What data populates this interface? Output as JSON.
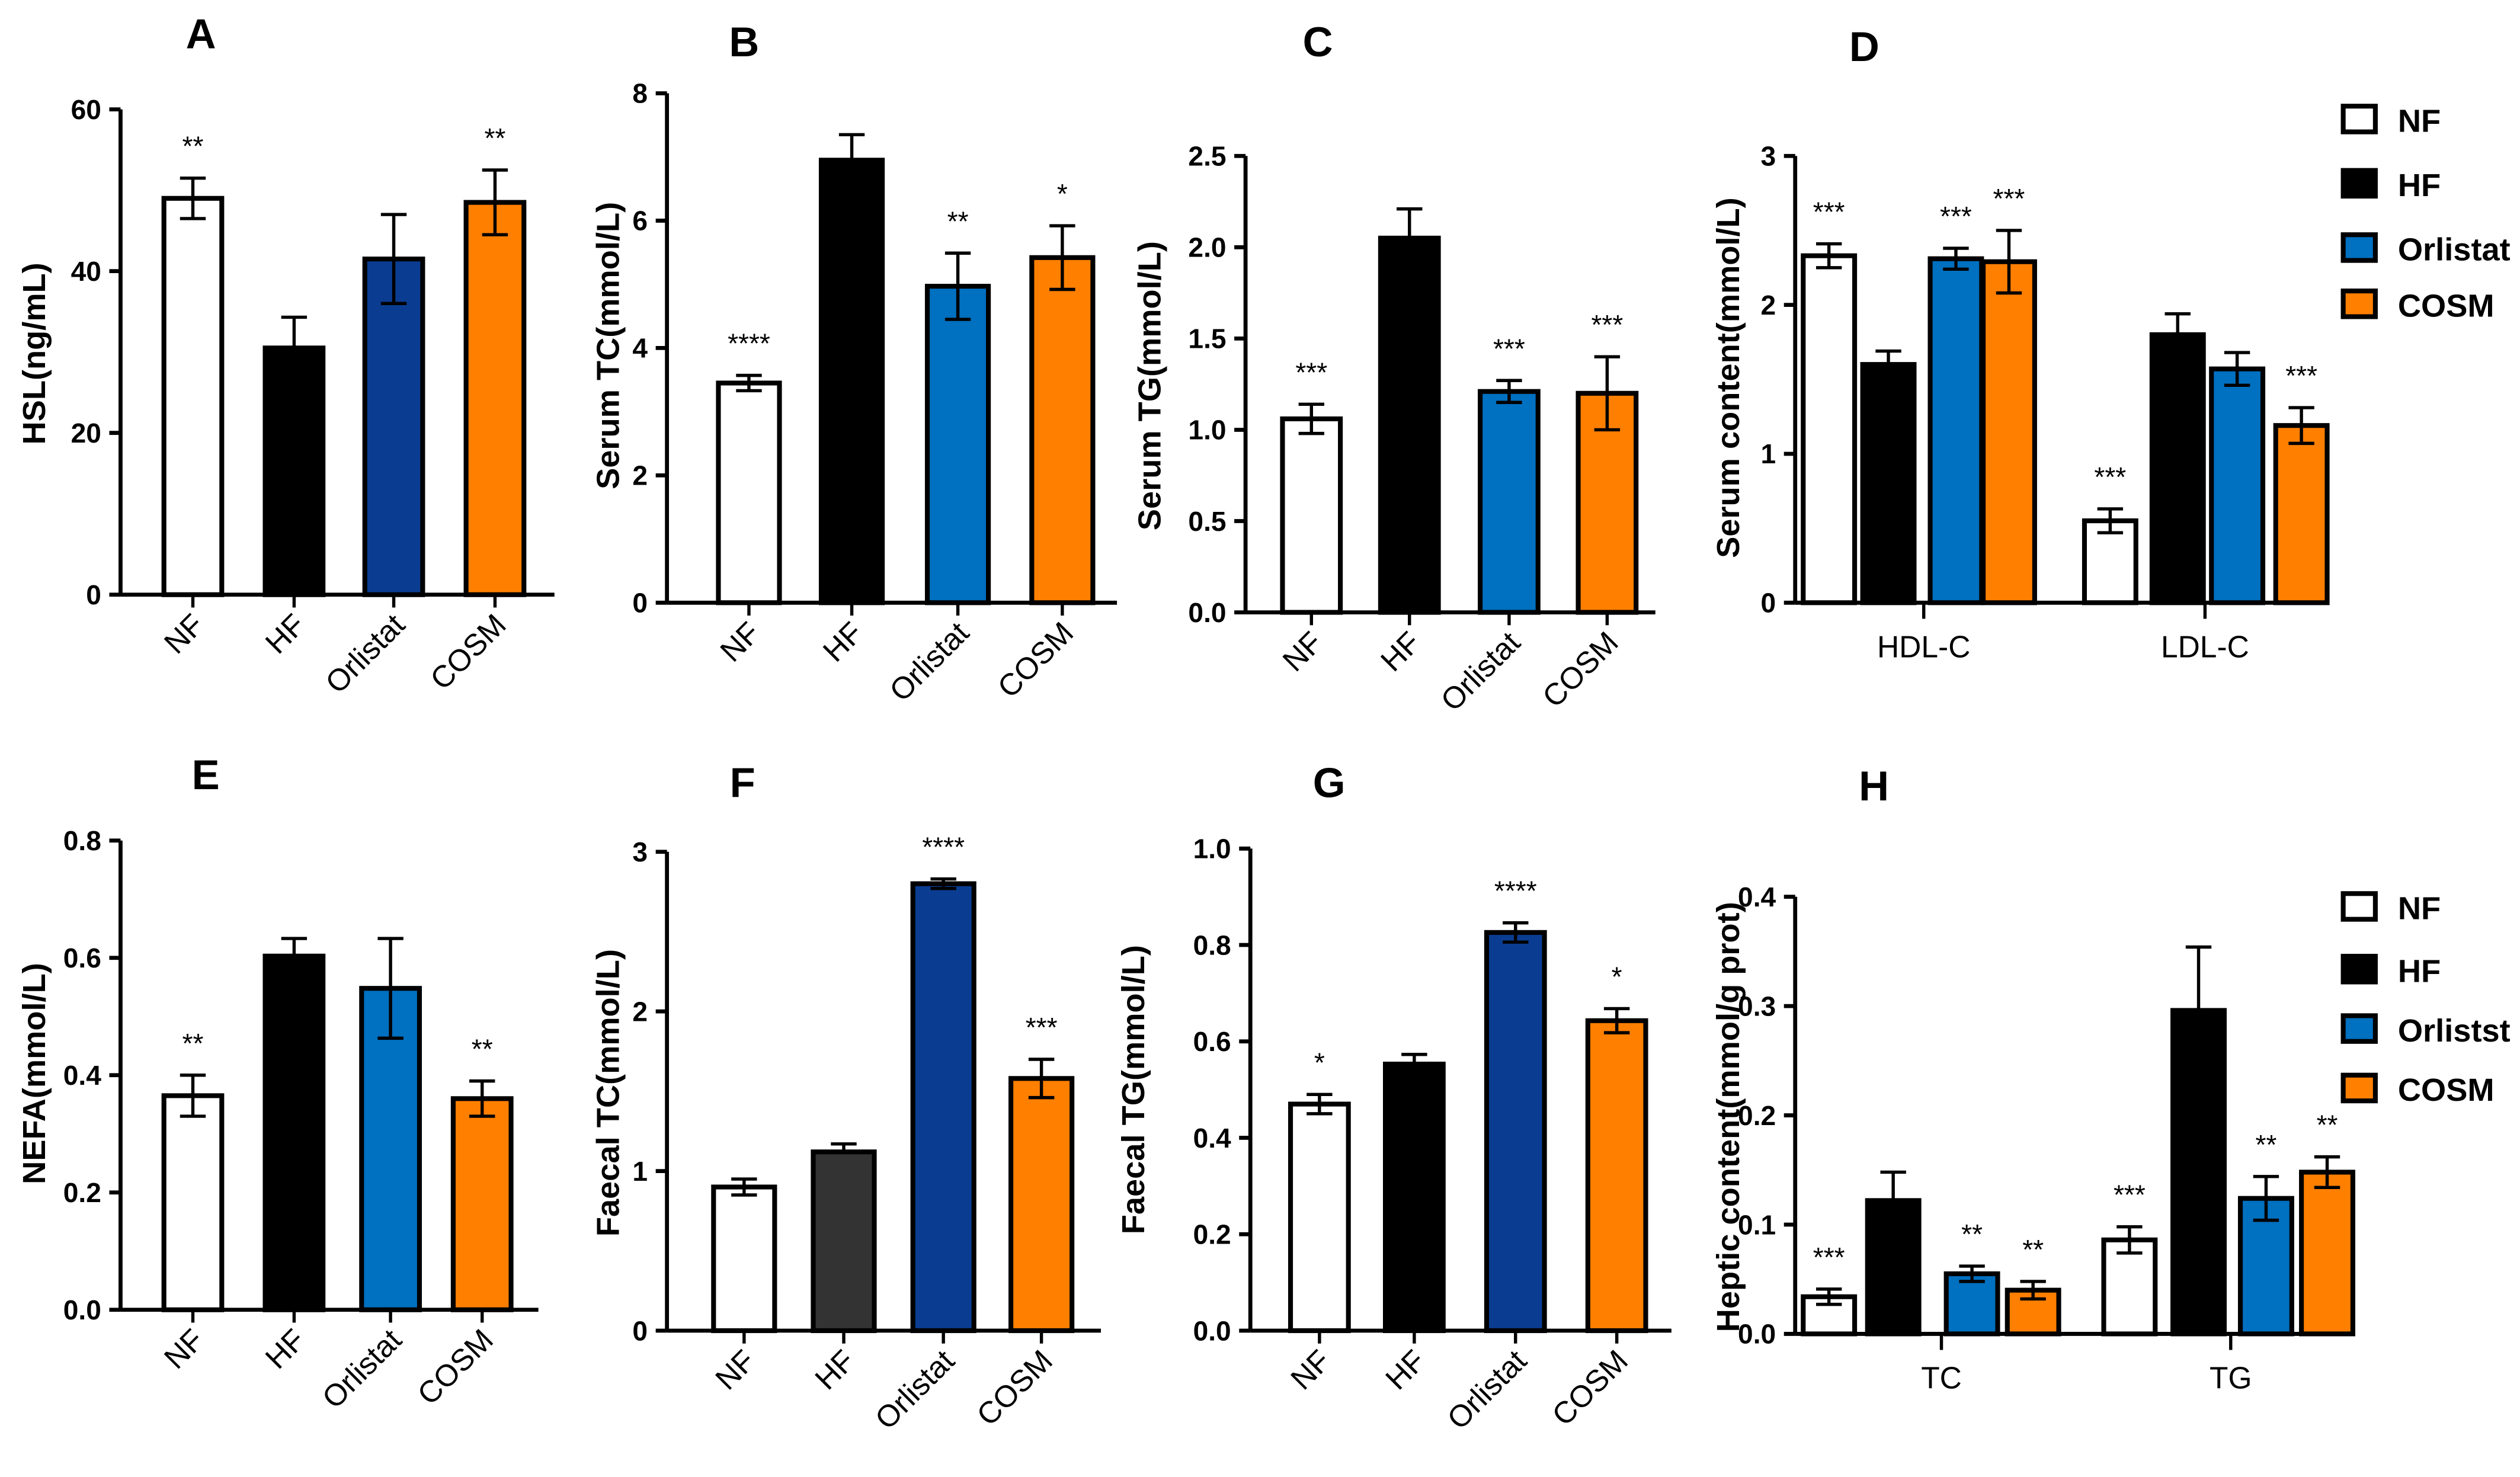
{
  "colors": {
    "NF": "#ffffff",
    "HF": "#000000",
    "HF_dark_gray": "#333333",
    "Orlistat_dark": "#0a3d91",
    "Orlistat": "#0070c0",
    "COSM": "#ff7f00"
  },
  "legend_top": [
    "NF",
    "HF",
    "Orlistat",
    "COSM"
  ],
  "legend_bottom": [
    "NF",
    "HF",
    "Orlistst",
    "COSM"
  ],
  "chart_data": [
    {
      "type": "bar",
      "title": "A",
      "ylabel": "HSL(ng/mL)",
      "ylim": [
        0,
        60
      ],
      "yticks": [
        "0",
        "20",
        "40",
        "60"
      ],
      "categories": [
        "NF",
        "HF",
        "Orlistat",
        "COSM"
      ],
      "values": [
        49,
        30.5,
        41.5,
        48.5
      ],
      "errors": [
        2.5,
        3.8,
        5.5,
        4
      ],
      "stars": [
        "**",
        "",
        "",
        "**"
      ],
      "colors": [
        "#ffffff",
        "#000000",
        "#0a3d91",
        "#ff7f00"
      ]
    },
    {
      "type": "bar",
      "title": "B",
      "ylabel": "Serum TC(mmol/L)",
      "ylim": [
        0,
        8
      ],
      "yticks": [
        "0",
        "2",
        "4",
        "6",
        "8"
      ],
      "categories": [
        "NF",
        "HF",
        "Orlistat",
        "COSM"
      ],
      "values": [
        3.45,
        6.95,
        4.97,
        5.42
      ],
      "errors": [
        0.12,
        0.4,
        0.52,
        0.5
      ],
      "stars": [
        "****",
        "",
        "**",
        "*"
      ],
      "colors": [
        "#ffffff",
        "#000000",
        "#0070c0",
        "#ff7f00"
      ]
    },
    {
      "type": "bar",
      "title": "C",
      "ylabel": "Serum TG(mmol/L)",
      "ylim": [
        0,
        2.5
      ],
      "yticks": [
        "0.0",
        "0.5",
        "1.0",
        "1.5",
        "2.0",
        "2.5"
      ],
      "categories": [
        "NF",
        "HF",
        "Orlistat",
        "COSM"
      ],
      "values": [
        1.06,
        2.05,
        1.21,
        1.2
      ],
      "errors": [
        0.08,
        0.16,
        0.06,
        0.2
      ],
      "stars": [
        "***",
        "",
        "***",
        "***"
      ],
      "colors": [
        "#ffffff",
        "#000000",
        "#0070c0",
        "#ff7f00"
      ]
    },
    {
      "type": "bar",
      "title": "D",
      "ylabel": "Serum content(mmol/L)",
      "ylim": [
        0,
        3
      ],
      "yticks": [
        "0",
        "1",
        "2",
        "3"
      ],
      "categories": [
        "HDL-C",
        "LDL-C"
      ],
      "series": [
        {
          "name": "NF",
          "values": [
            2.33,
            0.55
          ],
          "errors": [
            0.08,
            0.08
          ],
          "stars": [
            "***",
            "***"
          ],
          "color": "#ffffff"
        },
        {
          "name": "HF",
          "values": [
            1.6,
            1.8
          ],
          "errors": [
            0.09,
            0.14
          ],
          "stars": [
            "",
            ""
          ],
          "color": "#000000"
        },
        {
          "name": "Orlistat",
          "values": [
            2.31,
            1.57
          ],
          "errors": [
            0.07,
            0.11
          ],
          "stars": [
            "***",
            ""
          ],
          "color": "#0070c0"
        },
        {
          "name": "COSM",
          "values": [
            2.29,
            1.19
          ],
          "errors": [
            0.21,
            0.12
          ],
          "stars": [
            "***",
            "***"
          ],
          "color": "#ff7f00"
        }
      ],
      "legend": "right"
    },
    {
      "type": "bar",
      "title": "E",
      "ylabel": "NEFA(mmol/L)",
      "ylim": [
        0,
        0.8
      ],
      "yticks": [
        "0.0",
        "0.2",
        "0.4",
        "0.6",
        "0.8"
      ],
      "categories": [
        "NF",
        "HF",
        "Orlistat",
        "COSM"
      ],
      "values": [
        0.365,
        0.603,
        0.548,
        0.36
      ],
      "errors": [
        0.035,
        0.03,
        0.085,
        0.03
      ],
      "stars": [
        "**",
        "",
        "",
        "**"
      ],
      "colors": [
        "#ffffff",
        "#000000",
        "#0070c0",
        "#ff7f00"
      ]
    },
    {
      "type": "bar",
      "title": "F",
      "ylabel": "Faecal TC(mmol/L)",
      "ylim": [
        0,
        3
      ],
      "yticks": [
        "0",
        "1",
        "2",
        "3"
      ],
      "categories": [
        "NF",
        "HF",
        "Orlistat",
        "COSM"
      ],
      "values": [
        0.9,
        1.12,
        2.8,
        1.58
      ],
      "errors": [
        0.05,
        0.05,
        0.03,
        0.12
      ],
      "stars": [
        "",
        "",
        "****",
        "***"
      ],
      "colors": [
        "#ffffff",
        "#333333",
        "#0a3d91",
        "#ff7f00"
      ]
    },
    {
      "type": "bar",
      "title": "G",
      "ylabel": "Faecal TG(mmol/L)",
      "ylim": [
        0,
        1.0
      ],
      "yticks": [
        "0.0",
        "0.2",
        "0.4",
        "0.6",
        "0.8",
        "1.0"
      ],
      "categories": [
        "NF",
        "HF",
        "Orlistat",
        "COSM"
      ],
      "values": [
        0.47,
        0.553,
        0.826,
        0.643
      ],
      "errors": [
        0.02,
        0.02,
        0.02,
        0.025
      ],
      "stars": [
        "*",
        "",
        "****",
        "*"
      ],
      "colors": [
        "#ffffff",
        "#000000",
        "#0a3d91",
        "#ff7f00"
      ]
    },
    {
      "type": "bar",
      "title": "H",
      "ylabel": "Heptic content(mmol/g prot)",
      "ylim": [
        0,
        0.4
      ],
      "yticks": [
        "0.0",
        "0.1",
        "0.2",
        "0.3",
        "0.4"
      ],
      "categories": [
        "TC",
        "TG"
      ],
      "series": [
        {
          "name": "NF",
          "values": [
            0.034,
            0.086
          ],
          "errors": [
            0.007,
            0.012
          ],
          "stars": [
            "***",
            "***"
          ],
          "color": "#ffffff"
        },
        {
          "name": "HF",
          "values": [
            0.122,
            0.296
          ],
          "errors": [
            0.026,
            0.058
          ],
          "stars": [
            "",
            ""
          ],
          "color": "#000000"
        },
        {
          "name": "Orlistst",
          "values": [
            0.055,
            0.124
          ],
          "errors": [
            0.007,
            0.02
          ],
          "stars": [
            "**",
            "**"
          ],
          "color": "#0070c0"
        },
        {
          "name": "COSM",
          "values": [
            0.04,
            0.148
          ],
          "errors": [
            0.008,
            0.014
          ],
          "stars": [
            "**",
            "**"
          ],
          "color": "#ff7f00"
        }
      ],
      "legend": "right"
    }
  ]
}
